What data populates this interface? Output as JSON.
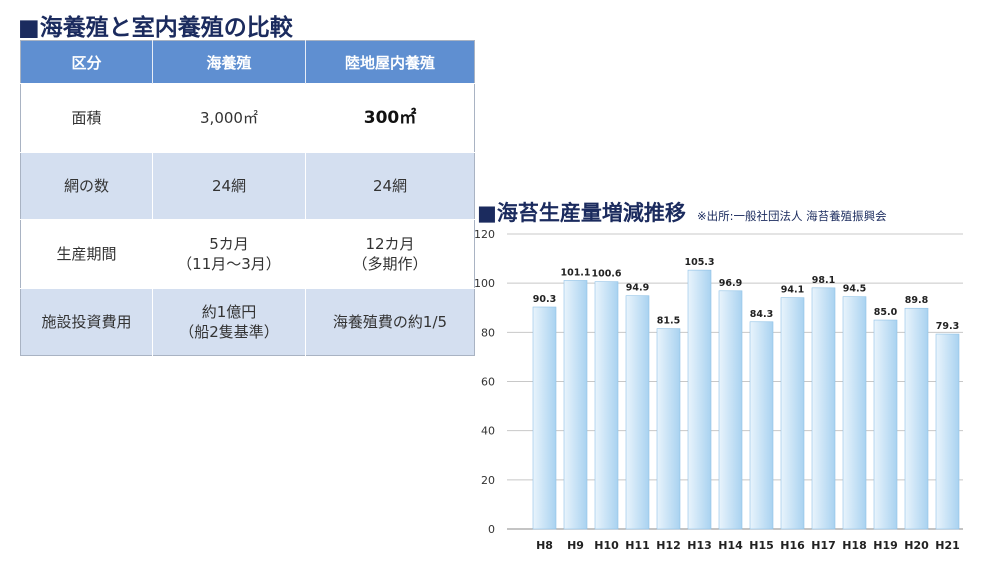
{
  "left_title": "■海養殖と室内養殖の比較",
  "table": {
    "headers": [
      "区分",
      "海養殖",
      "陸地屋内養殖"
    ],
    "rows": [
      {
        "label": "面積",
        "sea": "3,000㎡",
        "indoor": "300㎡"
      },
      {
        "label": "網の数",
        "sea": "24網",
        "indoor": "24網"
      },
      {
        "label": "生産期間",
        "sea_l1": "5カ月",
        "sea_l2": "（11月〜3月）",
        "indoor_l1": "12カ月",
        "indoor_l2": "（多期作）"
      },
      {
        "label": "施設投資費用",
        "sea_l1": "約1億円",
        "sea_l2": "（船2隻基準）",
        "indoor": "海養殖費の約1/5"
      }
    ]
  },
  "right_title": "■海苔生産量増減推移",
  "source_note": "※出所:一般社団法人 海苔養殖振興会",
  "chart_data": {
    "type": "bar",
    "categories": [
      "H8",
      "H9",
      "H10",
      "H11",
      "H12",
      "H13",
      "H14",
      "H15",
      "H16",
      "H17",
      "H18",
      "H19",
      "H20",
      "H21"
    ],
    "values": [
      90.3,
      101.1,
      100.6,
      94.9,
      81.5,
      105.3,
      96.9,
      84.3,
      94.1,
      98.1,
      94.5,
      85.0,
      89.8,
      79.3
    ],
    "value_labels": [
      "90.3",
      "101.1",
      "100.6",
      "94.9",
      "81.5",
      "105.3",
      "96.9",
      "84.3",
      "94.1",
      "98.1",
      "94.5",
      "85.0",
      "89.8",
      "79.3"
    ],
    "yticks": [
      "0",
      "20",
      "40",
      "60",
      "80",
      "100",
      "120"
    ],
    "ylim": [
      0,
      120
    ],
    "grid": true,
    "colors": {
      "bar_light": "#e9f4fc",
      "bar_dark": "#a9d2f0",
      "bar_edge": "#8fc1e6",
      "grid": "#c8c8c8",
      "axis": "#888888"
    }
  }
}
